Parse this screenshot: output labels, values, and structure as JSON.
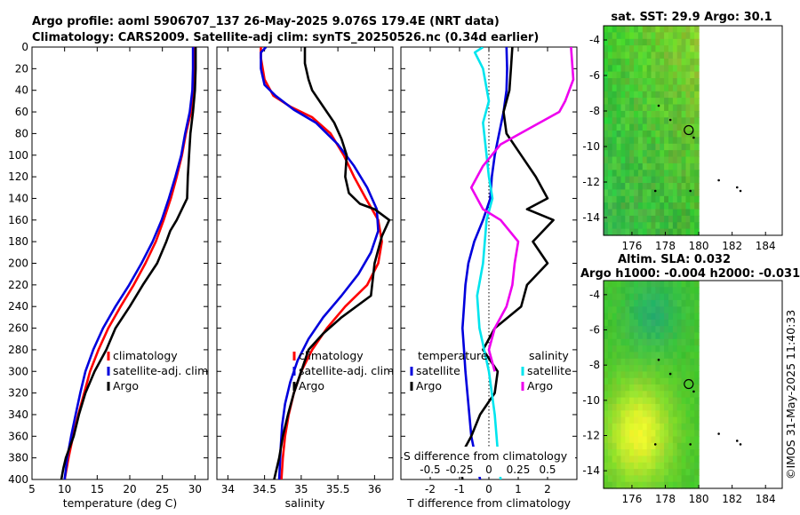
{
  "titles": {
    "line1": "Argo profile: aoml 5906707_137 26-May-2025 9.076S 179.4E (NRT data)",
    "line2": "Climatology: CARS2009. Satellite-adj clim: synTS_20250526.nc (0.34d earlier)"
  },
  "colors": {
    "climatology": "#ff0000",
    "satellite": "#0000dd",
    "argo": "#000000",
    "sal_satellite": "#00e5ee",
    "sal_argo": "#ee00ee"
  },
  "depth_axis": {
    "ticks": [
      0,
      20,
      40,
      60,
      80,
      100,
      120,
      140,
      160,
      180,
      200,
      220,
      240,
      260,
      280,
      300,
      320,
      340,
      360,
      380,
      400
    ],
    "ylim": [
      0,
      400
    ]
  },
  "watermark": "©IMOS 31-May-2025 11:40:33",
  "chart_data": [
    {
      "id": "temperature",
      "type": "line",
      "xlabel": "temperature (deg C)",
      "xlim": [
        5,
        32
      ],
      "xticks": [
        5,
        10,
        15,
        20,
        25,
        30
      ],
      "legend": [
        "climatology",
        "satellite-adj. clim",
        "Argo"
      ],
      "legend_position": "lower-right",
      "series": [
        {
          "name": "climatology",
          "color": "climatology",
          "points": [
            [
              29.9,
              0
            ],
            [
              29.9,
              20
            ],
            [
              29.8,
              40
            ],
            [
              29.4,
              60
            ],
            [
              28.6,
              80
            ],
            [
              28.0,
              100
            ],
            [
              27.2,
              120
            ],
            [
              26.3,
              140
            ],
            [
              25.2,
              160
            ],
            [
              24.0,
              180
            ],
            [
              22.4,
              200
            ],
            [
              20.6,
              220
            ],
            [
              18.6,
              240
            ],
            [
              16.7,
              260
            ],
            [
              15.2,
              280
            ],
            [
              13.9,
              300
            ],
            [
              13.0,
              320
            ],
            [
              12.1,
              340
            ],
            [
              11.3,
              360
            ],
            [
              10.6,
              380
            ],
            [
              10.0,
              400
            ]
          ]
        },
        {
          "name": "satellite-adj. clim",
          "color": "satellite",
          "points": [
            [
              29.7,
              0
            ],
            [
              29.7,
              20
            ],
            [
              29.6,
              40
            ],
            [
              29.2,
              60
            ],
            [
              28.5,
              80
            ],
            [
              27.9,
              100
            ],
            [
              27.0,
              120
            ],
            [
              26.0,
              140
            ],
            [
              24.9,
              160
            ],
            [
              23.5,
              180
            ],
            [
              21.8,
              200
            ],
            [
              19.9,
              220
            ],
            [
              17.8,
              240
            ],
            [
              15.9,
              260
            ],
            [
              14.4,
              280
            ],
            [
              13.2,
              300
            ],
            [
              12.4,
              320
            ],
            [
              11.7,
              340
            ],
            [
              11.0,
              360
            ],
            [
              10.4,
              380
            ],
            [
              10.0,
              400
            ]
          ]
        },
        {
          "name": "Argo",
          "color": "argo",
          "points": [
            [
              30.1,
              0
            ],
            [
              30.1,
              20
            ],
            [
              30.0,
              40
            ],
            [
              29.7,
              60
            ],
            [
              29.3,
              80
            ],
            [
              29.1,
              100
            ],
            [
              28.9,
              120
            ],
            [
              28.8,
              140
            ],
            [
              27.2,
              160
            ],
            [
              26.2,
              170
            ],
            [
              25.6,
              180
            ],
            [
              24.2,
              200
            ],
            [
              22.0,
              220
            ],
            [
              20.0,
              240
            ],
            [
              17.8,
              260
            ],
            [
              16.4,
              280
            ],
            [
              14.6,
              300
            ],
            [
              13.2,
              320
            ],
            [
              12.2,
              340
            ],
            [
              11.4,
              360
            ],
            [
              10.2,
              380
            ],
            [
              9.8,
              390
            ],
            [
              9.5,
              400
            ]
          ]
        }
      ]
    },
    {
      "id": "salinity",
      "type": "line",
      "xlabel": "salinity",
      "xlim": [
        33.85,
        36.25
      ],
      "xticks": [
        34,
        34.5,
        35,
        35.5,
        36
      ],
      "legend": [
        "climatology",
        "satellite-adj. clim",
        "Argo"
      ],
      "legend_position": "lower-right",
      "series": [
        {
          "name": "climatology",
          "color": "climatology",
          "points": [
            [
              34.45,
              0
            ],
            [
              34.45,
              10
            ],
            [
              34.5,
              30
            ],
            [
              34.62,
              45
            ],
            [
              34.85,
              55
            ],
            [
              35.15,
              65
            ],
            [
              35.4,
              80
            ],
            [
              35.58,
              100
            ],
            [
              35.72,
              120
            ],
            [
              35.88,
              140
            ],
            [
              36.05,
              160
            ],
            [
              36.1,
              180
            ],
            [
              36.05,
              200
            ],
            [
              35.9,
              220
            ],
            [
              35.6,
              240
            ],
            [
              35.35,
              260
            ],
            [
              35.15,
              280
            ],
            [
              35.0,
              300
            ],
            [
              34.9,
              320
            ],
            [
              34.83,
              340
            ],
            [
              34.78,
              360
            ],
            [
              34.75,
              380
            ],
            [
              34.73,
              400
            ]
          ]
        },
        {
          "name": "satellite-adj. clim",
          "color": "satellite",
          "points": [
            [
              34.52,
              0
            ],
            [
              34.45,
              5
            ],
            [
              34.45,
              20
            ],
            [
              34.5,
              35
            ],
            [
              34.65,
              45
            ],
            [
              34.9,
              58
            ],
            [
              35.2,
              70
            ],
            [
              35.5,
              90
            ],
            [
              35.72,
              110
            ],
            [
              35.9,
              130
            ],
            [
              36.03,
              150
            ],
            [
              36.05,
              170
            ],
            [
              35.95,
              190
            ],
            [
              35.78,
              210
            ],
            [
              35.55,
              230
            ],
            [
              35.3,
              250
            ],
            [
              35.1,
              270
            ],
            [
              34.95,
              290
            ],
            [
              34.85,
              310
            ],
            [
              34.78,
              330
            ],
            [
              34.74,
              350
            ],
            [
              34.72,
              370
            ],
            [
              34.7,
              400
            ]
          ]
        },
        {
          "name": "Argo",
          "color": "argo",
          "points": [
            [
              35.05,
              0
            ],
            [
              35.05,
              15
            ],
            [
              35.1,
              30
            ],
            [
              35.15,
              40
            ],
            [
              35.3,
              55
            ],
            [
              35.45,
              70
            ],
            [
              35.55,
              85
            ],
            [
              35.62,
              100
            ],
            [
              35.6,
              120
            ],
            [
              35.65,
              135
            ],
            [
              35.8,
              145
            ],
            [
              36.0,
              150
            ],
            [
              36.2,
              160
            ],
            [
              36.1,
              175
            ],
            [
              36.0,
              200
            ],
            [
              35.95,
              230
            ],
            [
              35.55,
              250
            ],
            [
              35.3,
              265
            ],
            [
              35.1,
              280
            ],
            [
              35.0,
              300
            ],
            [
              34.9,
              320
            ],
            [
              34.82,
              340
            ],
            [
              34.75,
              360
            ],
            [
              34.7,
              380
            ],
            [
              34.63,
              400
            ]
          ]
        }
      ]
    },
    {
      "id": "difference",
      "type": "line",
      "xlabel": "T difference from climatology",
      "xlabel2": "S difference from climatology",
      "xlim": [
        -3,
        3
      ],
      "xticks": [
        -2,
        -1,
        0,
        1,
        2
      ],
      "xlim2": [
        -0.75,
        0.75
      ],
      "xticks2": [
        -0.5,
        -0.25,
        0,
        0.25,
        0.5
      ],
      "legend_temperature": {
        "title": "temperature",
        "items": [
          "satellite",
          "Argo"
        ]
      },
      "legend_salinity": {
        "title": "salinity",
        "items": [
          "satellite",
          "Argo"
        ]
      },
      "series": [
        {
          "name": "T satellite",
          "color": "satellite",
          "axis": "T",
          "points": [
            [
              0.6,
              0
            ],
            [
              0.62,
              20
            ],
            [
              0.6,
              40
            ],
            [
              0.5,
              60
            ],
            [
              0.35,
              80
            ],
            [
              0.2,
              100
            ],
            [
              0.1,
              120
            ],
            [
              0.05,
              140
            ],
            [
              -0.2,
              160
            ],
            [
              -0.5,
              180
            ],
            [
              -0.7,
              200
            ],
            [
              -0.8,
              220
            ],
            [
              -0.85,
              240
            ],
            [
              -0.9,
              260
            ],
            [
              -0.85,
              280
            ],
            [
              -0.8,
              300
            ],
            [
              -0.7,
              330
            ],
            [
              -0.6,
              360
            ],
            [
              -0.45,
              380
            ],
            [
              -0.3,
              400
            ]
          ]
        },
        {
          "name": "T Argo",
          "color": "argo",
          "axis": "T",
          "points": [
            [
              0.8,
              0
            ],
            [
              0.75,
              20
            ],
            [
              0.7,
              40
            ],
            [
              0.5,
              60
            ],
            [
              0.6,
              80
            ],
            [
              1.1,
              100
            ],
            [
              1.6,
              120
            ],
            [
              2.0,
              140
            ],
            [
              1.3,
              150
            ],
            [
              2.2,
              160
            ],
            [
              1.5,
              180
            ],
            [
              2.0,
              200
            ],
            [
              1.3,
              220
            ],
            [
              1.1,
              240
            ],
            [
              0.2,
              260
            ],
            [
              -0.2,
              280
            ],
            [
              0.3,
              300
            ],
            [
              0.2,
              320
            ],
            [
              -0.3,
              340
            ],
            [
              -0.6,
              360
            ],
            [
              -1.0,
              380
            ],
            [
              -0.9,
              400
            ]
          ]
        },
        {
          "name": "S satellite",
          "color": "sal_satellite",
          "axis": "S",
          "points": [
            [
              -0.05,
              0
            ],
            [
              -0.12,
              5
            ],
            [
              -0.05,
              20
            ],
            [
              0.0,
              50
            ],
            [
              -0.05,
              70
            ],
            [
              -0.02,
              100
            ],
            [
              0.0,
              120
            ],
            [
              0.03,
              140
            ],
            [
              -0.02,
              160
            ],
            [
              -0.05,
              200
            ],
            [
              -0.1,
              230
            ],
            [
              -0.08,
              260
            ],
            [
              0.0,
              300
            ],
            [
              0.05,
              340
            ],
            [
              0.08,
              380
            ],
            [
              0.1,
              400
            ]
          ]
        },
        {
          "name": "S Argo",
          "color": "sal_argo",
          "axis": "S",
          "points": [
            [
              0.7,
              0
            ],
            [
              0.72,
              30
            ],
            [
              0.65,
              50
            ],
            [
              0.6,
              60
            ],
            [
              0.35,
              75
            ],
            [
              0.1,
              90
            ],
            [
              -0.05,
              110
            ],
            [
              -0.15,
              130
            ],
            [
              -0.05,
              150
            ],
            [
              0.1,
              160
            ],
            [
              0.25,
              180
            ],
            [
              0.22,
              200
            ],
            [
              0.2,
              220
            ],
            [
              0.15,
              240
            ],
            [
              0.05,
              260
            ],
            [
              0.0,
              280
            ],
            [
              0.05,
              300
            ]
          ]
        }
      ]
    },
    {
      "id": "sst_map",
      "type": "heatmap",
      "title": "sat. SST: 29.9 Argo: 30.1",
      "xlim": [
        174.3,
        185.0
      ],
      "ylim": [
        -15.0,
        -3.2
      ],
      "xticks": [
        176,
        178,
        180,
        182,
        184
      ],
      "yticks": [
        -4,
        -6,
        -8,
        -10,
        -12,
        -14
      ],
      "data_extent_lon": [
        174.3,
        180.0
      ],
      "marker": {
        "lon": 179.4,
        "lat": -9.076
      }
    },
    {
      "id": "sla_map",
      "type": "heatmap",
      "title1": "Altim. SLA: 0.032",
      "title2": "Argo h1000: -0.004 h2000: -0.031",
      "xlim": [
        174.3,
        185.0
      ],
      "ylim": [
        -15.0,
        -3.2
      ],
      "xticks": [
        176,
        178,
        180,
        182,
        184
      ],
      "yticks": [
        -4,
        -6,
        -8,
        -10,
        -12,
        -14
      ],
      "data_extent_lon": [
        174.3,
        180.0
      ],
      "marker": {
        "lon": 179.4,
        "lat": -9.076
      }
    }
  ]
}
